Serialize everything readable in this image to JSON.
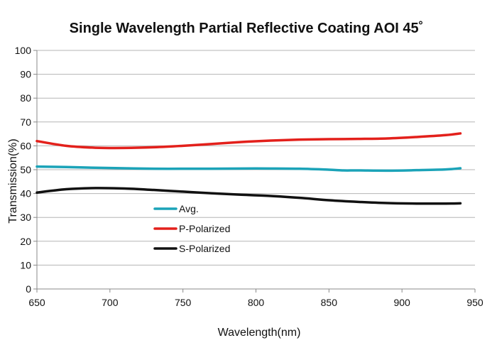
{
  "chart_data": {
    "type": "line",
    "title": "Single Wavelength Partial Reflective Coating AOI 45˚",
    "xlabel": "Wavelength(nm)",
    "ylabel": "Transmission(%)",
    "xlim": [
      650,
      950
    ],
    "ylim": [
      0,
      100
    ],
    "x_ticks": [
      650,
      700,
      750,
      800,
      850,
      900,
      950
    ],
    "x_tick_labels": [
      "650",
      "700",
      "750",
      "800",
      "850",
      "900",
      "950"
    ],
    "y_ticks": [
      0,
      10,
      20,
      30,
      40,
      50,
      60,
      70,
      80,
      90,
      100
    ],
    "y_tick_labels": [
      "0",
      "10",
      "20",
      "30",
      "40",
      "50",
      "60",
      "70",
      "80",
      "90",
      "100"
    ],
    "grid": "horizontal",
    "legend_position": "center-left",
    "series": [
      {
        "name": "Avg.",
        "color": "#1ba3b8",
        "x": [
          650,
          670,
          690,
          710,
          730,
          750,
          770,
          790,
          810,
          830,
          850,
          860,
          870,
          890,
          910,
          930,
          940
        ],
        "y": [
          51.3,
          51.1,
          50.8,
          50.6,
          50.4,
          50.4,
          50.4,
          50.5,
          50.5,
          50.4,
          50.0,
          49.7,
          49.7,
          49.6,
          49.8,
          50.1,
          50.6
        ]
      },
      {
        "name": "P-Polarized",
        "color": "#e3201b",
        "x": [
          650,
          670,
          690,
          710,
          730,
          750,
          770,
          790,
          810,
          830,
          850,
          870,
          890,
          910,
          930,
          940
        ],
        "y": [
          62.0,
          60.0,
          59.2,
          59.1,
          59.4,
          60.0,
          60.8,
          61.6,
          62.2,
          62.6,
          62.8,
          62.9,
          63.1,
          63.7,
          64.5,
          65.2
        ]
      },
      {
        "name": "S-Polarized",
        "color": "#111111",
        "x": [
          650,
          670,
          690,
          710,
          730,
          750,
          770,
          790,
          810,
          830,
          850,
          870,
          890,
          910,
          930,
          940
        ],
        "y": [
          40.4,
          41.8,
          42.3,
          42.1,
          41.5,
          40.8,
          40.1,
          39.5,
          39.0,
          38.2,
          37.2,
          36.5,
          36.0,
          35.8,
          35.8,
          35.9
        ]
      }
    ]
  }
}
